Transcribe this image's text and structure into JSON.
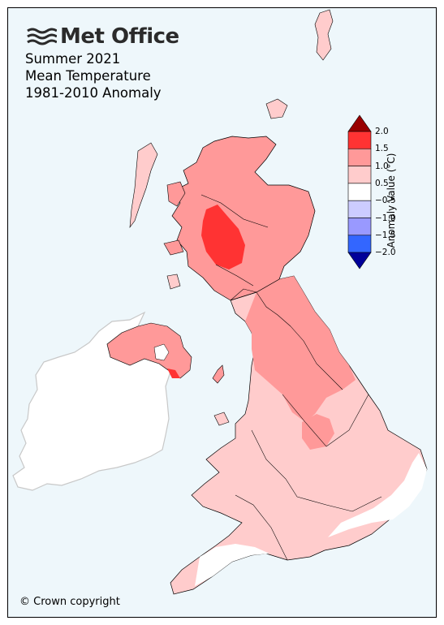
{
  "branding": {
    "logo_text": "Met Office",
    "logo_icon": "met-office-wave-icon"
  },
  "title": {
    "line1": "Summer 2021",
    "line2": "Mean Temperature",
    "line3": "1981-2010 Anomaly"
  },
  "copyright": "© Crown copyright",
  "colorbar": {
    "title": "Anomaly Value (°C)",
    "ticks": [
      "2.0",
      "1.5",
      "1.0",
      "0.5",
      "−0.5",
      "−1.0",
      "−1.5",
      "−2.0"
    ],
    "bins": [
      {
        "range": "1.5 to 2.0",
        "color": "#ff3333"
      },
      {
        "range": "1.0 to 1.5",
        "color": "#ff9999"
      },
      {
        "range": "0.5 to 1.0",
        "color": "#ffcccc"
      },
      {
        "range": "-0.5 to 0.5",
        "color": "#ffffff"
      },
      {
        "range": "-1.0 to -0.5",
        "color": "#ccccff"
      },
      {
        "range": "-1.5 to -1.0",
        "color": "#9999ff"
      },
      {
        "range": "-2.0 to -1.5",
        "color": "#3366ff"
      }
    ],
    "over_color": "#990000",
    "under_color": "#000099"
  },
  "colors": {
    "sea": "#eef7fb",
    "ireland": "#ffffff",
    "ireland_border": "#c8c8c8"
  }
}
